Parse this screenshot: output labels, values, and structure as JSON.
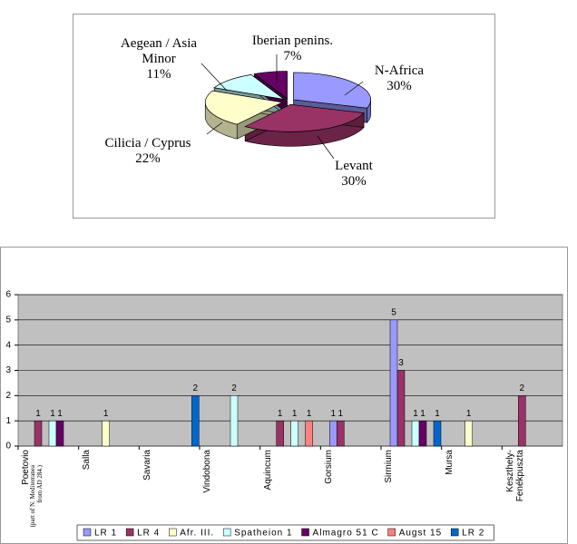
{
  "chart_data": [
    {
      "type": "pie",
      "categories": [
        "N-Africa",
        "Levant",
        "Cilicia / Cyprus",
        "Aegean / Asia Minor",
        "Iberian penins."
      ],
      "values": [
        30,
        30,
        22,
        11,
        7
      ],
      "value_labels": [
        "30%",
        "30%",
        "22%",
        "11%",
        "7%"
      ],
      "colors": [
        "#9999ff",
        "#993366",
        "#ffffcc",
        "#ccffff",
        "#660066"
      ]
    },
    {
      "type": "bar",
      "categories": [
        "Poetovio",
        "Salla",
        "Savaria",
        "Vindobona",
        "Aquincum",
        "Gorsium",
        "Sirmium",
        "Mursa",
        "Keszthely-Fenékpuszta"
      ],
      "annotations": [
        "(part of N. Mediterranea from AD 284.)"
      ],
      "series": [
        {
          "name": "LR 1",
          "color": "#9999ff",
          "values": [
            null,
            null,
            null,
            null,
            null,
            1,
            5,
            null,
            null
          ]
        },
        {
          "name": "LR 4",
          "color": "#993366",
          "values": [
            1,
            null,
            null,
            null,
            1,
            1,
            3,
            null,
            2
          ]
        },
        {
          "name": "Afr. III.",
          "color": "#ffffcc",
          "values": [
            null,
            1,
            null,
            null,
            null,
            null,
            null,
            1,
            null
          ]
        },
        {
          "name": "Spatheion 1",
          "color": "#ccffff",
          "values": [
            1,
            null,
            null,
            2,
            1,
            null,
            1,
            null,
            null
          ]
        },
        {
          "name": "Almagro 51 C",
          "color": "#660066",
          "values": [
            1,
            null,
            null,
            null,
            null,
            null,
            1,
            null,
            null
          ]
        },
        {
          "name": "Augst 15",
          "color": "#ff8080",
          "values": [
            null,
            null,
            null,
            null,
            1,
            null,
            null,
            null,
            null
          ]
        },
        {
          "name": "LR 2",
          "color": "#0066cc",
          "values": [
            null,
            null,
            2,
            null,
            null,
            null,
            1,
            null,
            null
          ]
        }
      ],
      "ylim": [
        0,
        6
      ],
      "yticks": [
        0,
        1,
        2,
        3,
        4,
        5,
        6
      ],
      "grid": true,
      "legend": "bottom"
    }
  ]
}
